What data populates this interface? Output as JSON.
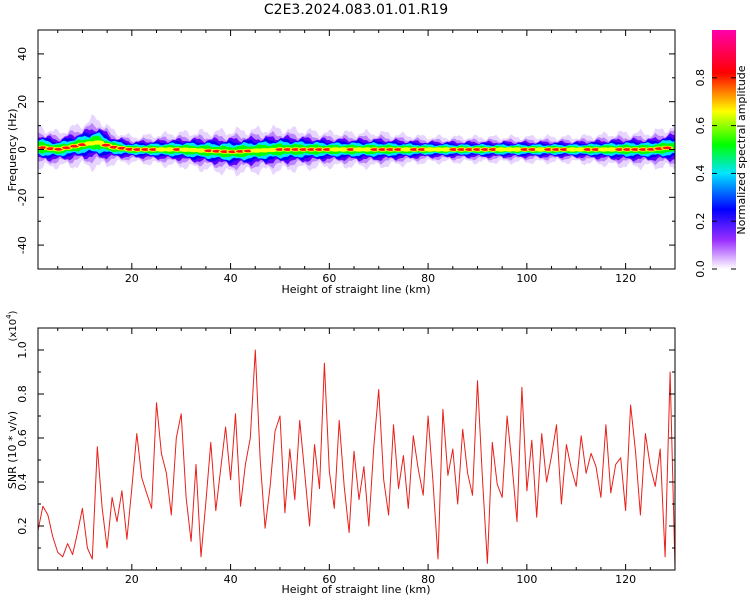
{
  "title": "C2E3.2024.083.01.01.R19",
  "chart_data": [
    {
      "type": "heatmap",
      "title": "C2E3.2024.083.01.01.R19",
      "xlabel": "Height of straight line (km)",
      "ylabel": "Frequency (Hz)",
      "xlim": [
        1,
        130
      ],
      "ylim": [
        -50,
        50
      ],
      "xticks": [
        20,
        40,
        60,
        80,
        100,
        120
      ],
      "yticks": [
        -40,
        -20,
        0,
        20,
        40
      ],
      "colorbar": {
        "label": "Normalized spectral amplitude",
        "range": [
          0,
          1
        ],
        "ticks": [
          0.0,
          0.2,
          0.4,
          0.6,
          0.8
        ],
        "colors": [
          "#ffffff",
          "#9b30ff",
          "#0000ff",
          "#00e5ff",
          "#00ff00",
          "#ffff00",
          "#ff0000",
          "#ff00aa"
        ]
      },
      "band": {
        "x": [
          1,
          5,
          10,
          13,
          16,
          20,
          30,
          40,
          50,
          60,
          70,
          80,
          90,
          100,
          110,
          120,
          125,
          130
        ],
        "center_hz": [
          1,
          0,
          2,
          3,
          1,
          0,
          0,
          -1,
          0,
          0,
          0,
          0,
          0,
          0,
          0,
          0,
          0,
          1
        ],
        "halfwidth_hz": [
          5,
          4,
          5,
          6,
          4,
          3,
          4,
          5,
          5,
          4,
          4,
          3,
          3,
          3,
          3,
          4,
          4,
          5
        ],
        "peak_amplitude": 1.0
      }
    },
    {
      "type": "line",
      "xlabel": "Height of straight line (km)",
      "ylabel": "SNR (10 * v/v)",
      "yscale_label": "(x10",
      "yscale_exp": "4",
      "xlim": [
        1,
        130
      ],
      "ylim": [
        0,
        1.1
      ],
      "xticks": [
        20,
        40,
        60,
        80,
        100,
        120
      ],
      "yticks": [
        0.2,
        0.4,
        0.6,
        0.8,
        1.0
      ],
      "line_color": "#e8201a",
      "series": [
        {
          "x": [
            1,
            2,
            3,
            4,
            5,
            6,
            7,
            8,
            9,
            10,
            11,
            12,
            13,
            14,
            15,
            16,
            17,
            18,
            19,
            20,
            21,
            22,
            23,
            24,
            25,
            26,
            27,
            28,
            29,
            30,
            31,
            32,
            33,
            34,
            35,
            36,
            37,
            38,
            39,
            40,
            41,
            42,
            43,
            44,
            45,
            46,
            47,
            48,
            49,
            50,
            51,
            52,
            53,
            54,
            55,
            56,
            57,
            58,
            59,
            60,
            61,
            62,
            63,
            64,
            65,
            66,
            67,
            68,
            69,
            70,
            71,
            72,
            73,
            74,
            75,
            76,
            77,
            78,
            79,
            80,
            81,
            82,
            83,
            84,
            85,
            86,
            87,
            88,
            89,
            90,
            91,
            92,
            93,
            94,
            95,
            96,
            97,
            98,
            99,
            100,
            101,
            102,
            103,
            104,
            105,
            106,
            107,
            108,
            109,
            110,
            111,
            112,
            113,
            114,
            115,
            116,
            117,
            118,
            119,
            120,
            121,
            122,
            123,
            124,
            125,
            126,
            127,
            128,
            129,
            130
          ],
          "y": [
            0.18,
            0.29,
            0.25,
            0.15,
            0.08,
            0.06,
            0.12,
            0.07,
            0.17,
            0.28,
            0.1,
            0.05,
            0.56,
            0.28,
            0.1,
            0.33,
            0.22,
            0.36,
            0.14,
            0.37,
            0.62,
            0.42,
            0.35,
            0.28,
            0.76,
            0.53,
            0.44,
            0.25,
            0.6,
            0.71,
            0.33,
            0.13,
            0.48,
            0.06,
            0.31,
            0.58,
            0.27,
            0.46,
            0.65,
            0.41,
            0.71,
            0.29,
            0.48,
            0.6,
            1.0,
            0.5,
            0.19,
            0.38,
            0.63,
            0.7,
            0.26,
            0.55,
            0.32,
            0.68,
            0.44,
            0.2,
            0.57,
            0.37,
            0.94,
            0.45,
            0.28,
            0.68,
            0.38,
            0.17,
            0.54,
            0.32,
            0.47,
            0.2,
            0.56,
            0.82,
            0.41,
            0.25,
            0.66,
            0.37,
            0.52,
            0.28,
            0.61,
            0.46,
            0.34,
            0.7,
            0.4,
            0.05,
            0.73,
            0.43,
            0.55,
            0.3,
            0.64,
            0.44,
            0.34,
            0.86,
            0.42,
            0.03,
            0.58,
            0.39,
            0.33,
            0.7,
            0.48,
            0.22,
            0.83,
            0.36,
            0.59,
            0.24,
            0.62,
            0.4,
            0.52,
            0.66,
            0.3,
            0.57,
            0.46,
            0.38,
            0.61,
            0.44,
            0.53,
            0.47,
            0.33,
            0.66,
            0.35,
            0.48,
            0.51,
            0.27,
            0.75,
            0.54,
            0.25,
            0.62,
            0.47,
            0.38,
            0.55,
            0.06,
            0.9,
            0.01
          ]
        }
      ]
    }
  ]
}
